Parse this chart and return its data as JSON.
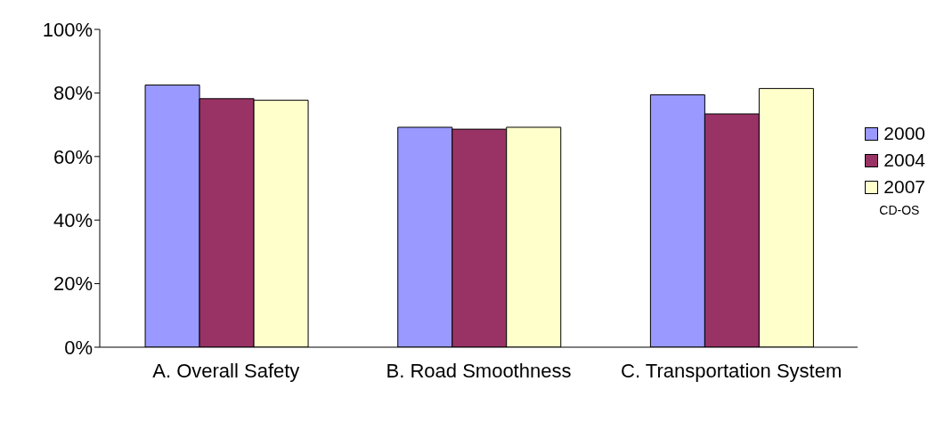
{
  "chart_data": {
    "type": "bar",
    "categories": [
      "A. Overall Safety",
      "B. Road Smoothness",
      "C. Transportation System"
    ],
    "series": [
      {
        "name": "2000",
        "color": "#9999ff",
        "values": [
          82.5,
          69.2,
          79.4
        ]
      },
      {
        "name": "2004",
        "color": "#993366",
        "values": [
          78.2,
          68.6,
          73.4
        ]
      },
      {
        "name": "2007",
        "color": "#ffffcc",
        "values": [
          77.7,
          69.2,
          81.4
        ]
      }
    ],
    "ylim": [
      0,
      100
    ],
    "yticks": [
      {
        "value": 0,
        "label": "0%"
      },
      {
        "value": 20,
        "label": "20%"
      },
      {
        "value": 40,
        "label": "40%"
      },
      {
        "value": 60,
        "label": "60%"
      },
      {
        "value": 80,
        "label": "80%"
      },
      {
        "value": 100,
        "label": "100%"
      }
    ],
    "grid": false,
    "legend": "right",
    "annotations": [
      "CD-OS"
    ]
  }
}
